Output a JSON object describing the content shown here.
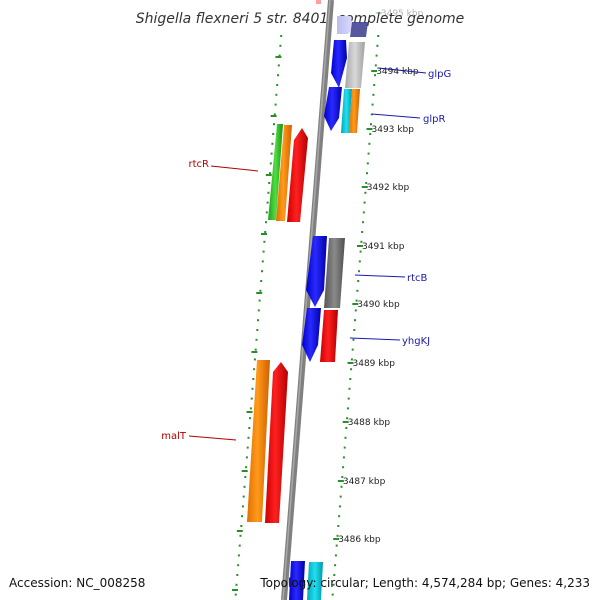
{
  "title": "Shigella flexneri 5 str. 8401, complete genome",
  "footer": {
    "accession": "Accession: NC_008258",
    "topology": "Topology: circular; Length: 4,574,284 bp; Genes: 4,233"
  },
  "colors": {
    "backbone": "#808080",
    "tick_marks": "#2a8f2a",
    "forward_label": "#1a1aaa",
    "reverse_label": "#b00000"
  },
  "kbp_ticks": [
    {
      "label": "3495 kbp",
      "faint": true
    },
    {
      "label": "3494 kbp"
    },
    {
      "label": "3493 kbp"
    },
    {
      "label": "3492 kbp"
    },
    {
      "label": "3491 kbp"
    },
    {
      "label": "3490 kbp"
    },
    {
      "label": "3489 kbp"
    },
    {
      "label": "3488 kbp"
    },
    {
      "label": "3487 kbp"
    },
    {
      "label": "3486 kbp"
    }
  ],
  "gene_labels": [
    {
      "name": "glpG",
      "strand": "forward"
    },
    {
      "name": "glpR",
      "strand": "forward"
    },
    {
      "name": "rtcB",
      "strand": "forward"
    },
    {
      "name": "yhgKJ",
      "strand": "forward"
    },
    {
      "name": "rtcR",
      "strand": "reverse"
    },
    {
      "name": "malT",
      "strand": "reverse"
    }
  ]
}
